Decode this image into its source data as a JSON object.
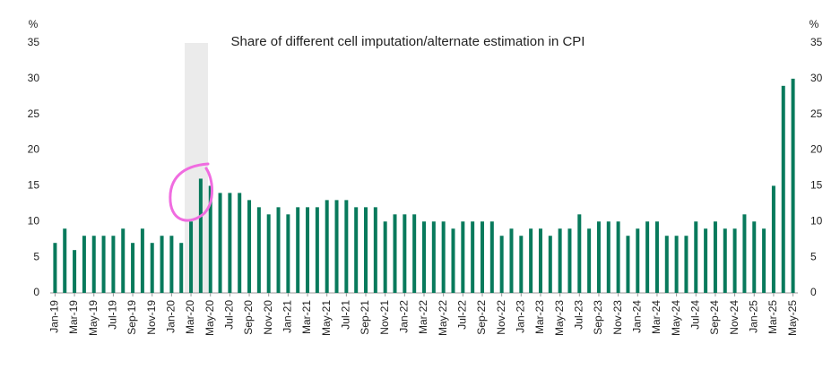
{
  "chart_data": {
    "type": "bar",
    "title": "Share of different cell imputation/alternate estimation in CPI",
    "y_label": "%",
    "y2_label": "%",
    "categories": [
      "Jan-19",
      null,
      "Mar-19",
      null,
      "May-19",
      null,
      "Jul-19",
      null,
      "Sep-19",
      null,
      "Nov-19",
      null,
      "Jan-20",
      null,
      "Mar-20",
      null,
      "May-20",
      null,
      "Jul-20",
      null,
      "Sep-20",
      null,
      "Nov-20",
      null,
      "Jan-21",
      null,
      "Mar-21",
      null,
      "May-21",
      null,
      "Jul-21",
      null,
      "Sep-21",
      null,
      "Nov-21",
      null,
      "Jan-22",
      null,
      "Mar-22",
      null,
      "May-22",
      null,
      "Jul-22",
      null,
      "Sep-22",
      null,
      "Nov-22",
      null,
      "Jan-23",
      null,
      "Mar-23",
      null,
      "May-23",
      null,
      "Jul-23",
      null,
      "Sep-23",
      null,
      "Nov-23",
      null,
      "Jan-24",
      null,
      "Mar-24",
      null,
      "May-24",
      null,
      "Jul-24",
      null,
      "Sep-24",
      null,
      "Nov-24",
      null,
      "Jan-25",
      null,
      "Mar-25",
      null,
      "May-25"
    ],
    "values": [
      7,
      9,
      6,
      8,
      8,
      8,
      8,
      9,
      7,
      9,
      7,
      8,
      8,
      7,
      10,
      16,
      15,
      14,
      14,
      14,
      13,
      12,
      11,
      12,
      11,
      12,
      12,
      12,
      13,
      13,
      13,
      12,
      12,
      12,
      10,
      11,
      11,
      11,
      10,
      10,
      10,
      9,
      10,
      10,
      10,
      10,
      8,
      9,
      8,
      9,
      9,
      8,
      9,
      9,
      11,
      9,
      10,
      10,
      10,
      8,
      9,
      10,
      10,
      8,
      8,
      8,
      10,
      9,
      10,
      9,
      9,
      11,
      10,
      9,
      15,
      29,
      30
    ],
    "color": "#087a5c",
    "ylim": [
      0,
      35
    ],
    "yticks": [
      0,
      5,
      10,
      15,
      20,
      25,
      30,
      35
    ],
    "y2lim": [
      0,
      35
    ],
    "y2ticks": [
      0,
      5,
      10,
      15,
      20,
      25,
      30,
      35
    ],
    "grid": false
  }
}
